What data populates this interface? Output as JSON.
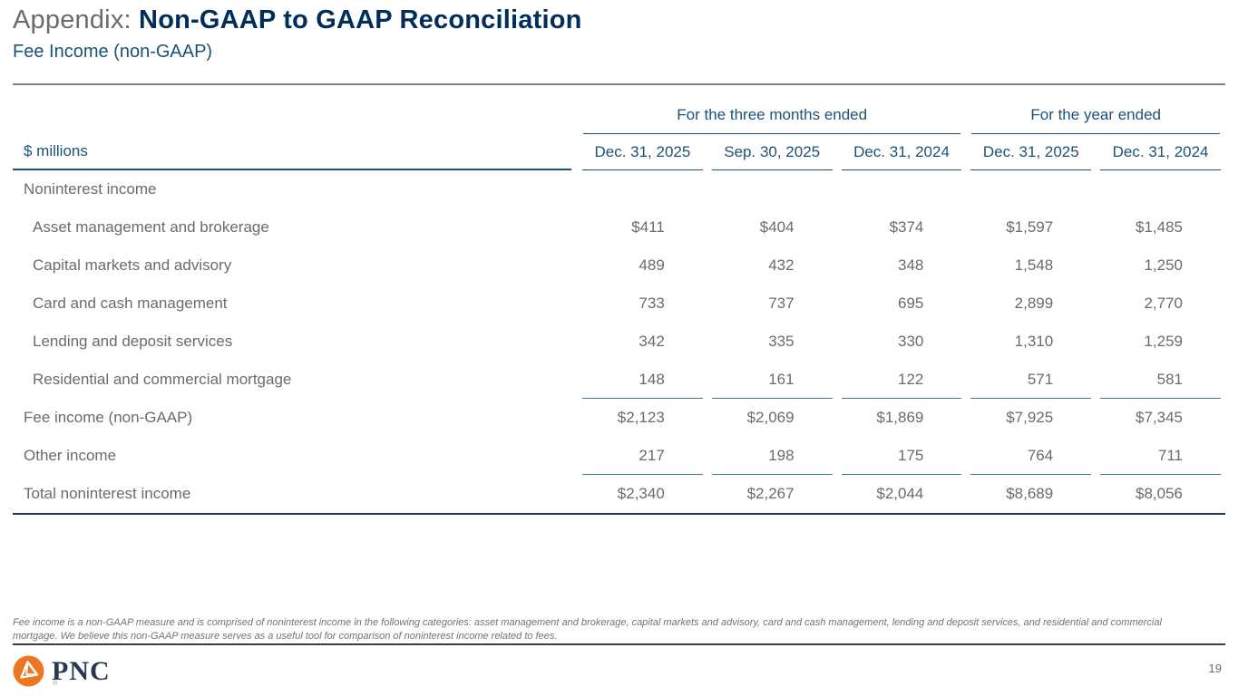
{
  "slide": {
    "title_prefix": "Appendix: ",
    "title_main": "Non-GAAP to GAAP Reconciliation",
    "subtitle": "Fee Income (non-GAAP)",
    "footnote": "Fee income is a non-GAAP measure and is comprised of noninterest income in the following categories: asset management and brokerage, capital markets and advisory, card and cash management, lending and deposit services, and residential and commercial mortgage. We believe this non-GAAP measure serves as a useful tool for comparison of noninterest income related to fees.",
    "page_number": "19",
    "logo_text": "PNC",
    "logo_registered_mark": "®"
  },
  "colors": {
    "title_navy": "#002e5a",
    "header_navy": "#1d5278",
    "steel_rule": "#3c7ca6",
    "body_gray": "#6b6b6b",
    "pnc_orange": "#ee7623"
  },
  "table": {
    "unit_label": "$ millions",
    "group_headers": [
      {
        "label": "For the three months ended",
        "span": 3
      },
      {
        "label": "For the year ended",
        "span": 2
      }
    ],
    "column_headers": [
      "Dec. 31, 2025",
      "Sep. 30, 2025",
      "Dec. 31, 2024",
      "Dec. 31, 2025",
      "Dec. 31, 2024"
    ],
    "rows": [
      {
        "label": "Noninterest income",
        "values": [
          "",
          "",
          "",
          "",
          ""
        ],
        "style": "section"
      },
      {
        "label": "Asset management and brokerage",
        "values": [
          "$411",
          "$404",
          "$374",
          "$1,597",
          "$1,485"
        ],
        "style": "indent"
      },
      {
        "label": "Capital markets and advisory",
        "values": [
          "489",
          "432",
          "348",
          "1,548",
          "1,250"
        ],
        "style": "indent"
      },
      {
        "label": "Card and cash management",
        "values": [
          "733",
          "737",
          "695",
          "2,899",
          "2,770"
        ],
        "style": "indent"
      },
      {
        "label": "Lending and deposit services",
        "values": [
          "342",
          "335",
          "330",
          "1,310",
          "1,259"
        ],
        "style": "indent"
      },
      {
        "label": "Residential and commercial mortgage",
        "values": [
          "148",
          "161",
          "122",
          "571",
          "581"
        ],
        "style": "indent rule-below"
      },
      {
        "label": "Fee income (non-GAAP)",
        "values": [
          "$2,123",
          "$2,069",
          "$1,869",
          "$7,925",
          "$7,345"
        ],
        "style": "subtotal"
      },
      {
        "label": "Other income",
        "values": [
          "217",
          "198",
          "175",
          "764",
          "711"
        ],
        "style": "rule-below"
      },
      {
        "label": "Total noninterest income",
        "values": [
          "$2,340",
          "$2,267",
          "$2,044",
          "$8,689",
          "$8,056"
        ],
        "style": "total"
      }
    ]
  }
}
